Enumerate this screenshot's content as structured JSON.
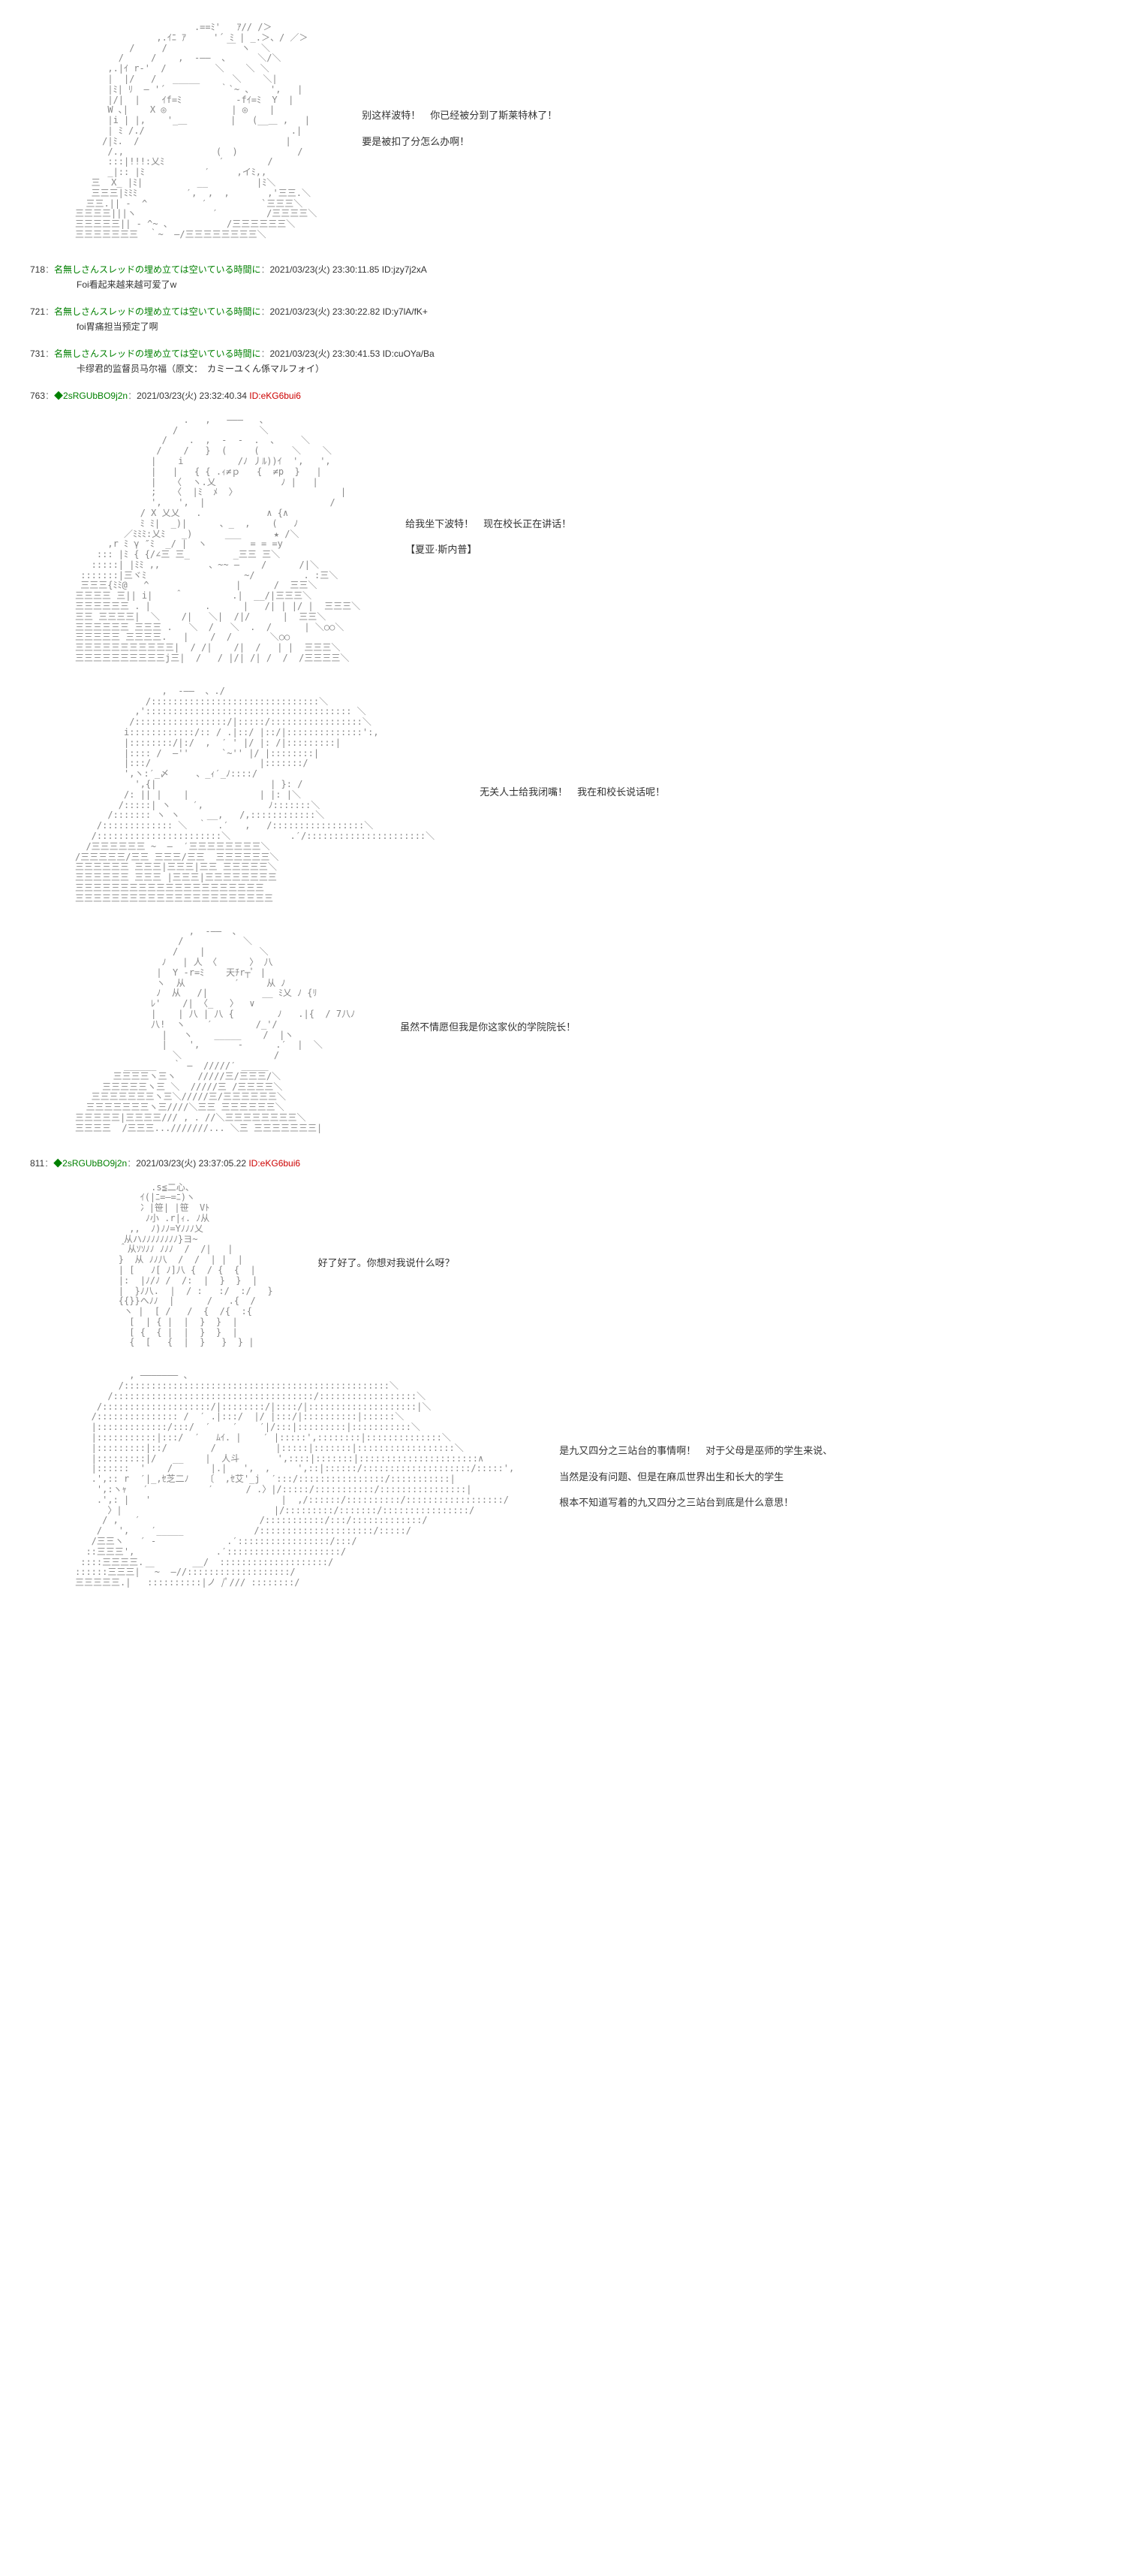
{
  "panels": [
    {
      "aa": "                      .==ﾐ'   ｱ// /＞\n               ,.ｲﾆ ｱ     '´ ﾐ | _.＞、/ ／＞\n          /     /           ￣ ヽ  ＼\n        /     /    ,  -――  、     ＼/＼\n      ,.|ｲ r‐'  /         ＼    ＼ ＼\n      |  |/   /   _____      ＼    ＼|\n      |ﾐ| ﾘ  ― '´          ｀`~ 、   ',   |\n      |/|  |    ｲf=ﾐ          ‐fｲ=ﾐ  Y  |\n      W ､|    X ◎            | ◎    |\n      |i | |,    '_＿        |   (__＿ ,   |\n      | ﾐ /./                           .|\n     /|ﾐ.  /                           |\n      /.,                 (  )           /\n      :::|!!!:乂ﾐ          ′        /\n      _|:: |ﾐ           ′     ,イﾐ,,\n   三  X_ |ﾐ|          __         |ﾐ＼\n   三三三|ﾐﾐﾐ         ′,  ,  ,       ,'三三.＼\n  三三.|| -  ^          ′          `三三三＼\n三三三三|||ヽ              ′         /三三三三＼\n三三三三三|| - ^~ 、          /三三三三三三＼\n三三三三三三三  ｀~  ―/三三三三三三三三＼",
      "lines": [
        "别这样波特！　你已经被分到了斯莱特林了！",
        "要是被扣了分怎么办啊！"
      ]
    },
    {
      "aa": "                    .   ,   ―――   、\n                  /               ＼\n                /    .  ,  -  -  .  、    ＼\n               /    /   }  (     (      ＼    ＼\n              |    i          /ﾉ 丿ﾙ))ｲ  ',   ',\n              |   |   { { .ｨ≠ｐ   {  ≠p  }   |\n              |   〈  ヽ.乂            ﾉ |   |\n              ;   〈  |ﾐ  ﾒ  〉                   |\n              ',   ',  |                       /\n            / X 乂乂   .            ∧ {∧\n            ﾐ ﾐ|  _)|      、_  ,    (   ﾉ\n         ／ﾐﾐﾐ:乂ﾐ   _)      ___      ★ /＼\n      ,r ﾐ γ ″ﾐ  _/ |  ヽ        = = =y\n    ::: |ﾐ { {/∠三 三_        _三三 三＼\n   :::::| |ﾐﾐ ,,         、~~ ―    /      /|＼\n :::::::|三ヾﾐ                  ~/         . :三＼\n 三三三{ﾐﾐ@   ^                |      /  三三＼\n三三三三 三|| i|    ＾         .|  __/|三三三＼\n三三三三三三 . |          .      |   /| | |/ |  三三三＼\n三三 三三三三|  ＼    /|   ＼|  /|/      |  三三＼\n三三三三三三 三三三 .   ＼  /   ＼  .  /      | ＼○○＼\n三三三三三 三三三三.   |    /  /       ＼○○\n三三三三三三三三三三三|  / /|    /|  /   | |  三三三＼\n三三三三三三三三三三j三|  /   / |/| /| /  /  /三三三三＼",
      "lines": [
        "给我坐下波特！　现在校长正在讲话！",
        "",
        "",
        "",
        "【夏亚·斯内普】"
      ]
    },
    {
      "aa": "                ,  -――  、./\n             /:::::::::::::::::::::::::::::::＼\n           ,':::::::::::::::::::::::::::::::::::::: ＼\n          /:::::::::::::::::/|:::::/:::::::::::::::::＼\n         i::::::::::::/:: / .|::/ |::/|::::::::::::::':,\n         |::::::::/|:/  ,  ′ ' |/ |: /|:::::::::|\n         |:::: /  ―''      `~'' |/ |::::::::|\n         |:::/                    |:::::::/\n         ',ヽ:′_〆     、_ｨ′_ﾉ::::/\n           ',{|                     | }: /\n         /: || |    |             | |: |＼\n        /:::::| ヽ    ′,            ﾉ:::::::＼\n      /::::::: ヽ ヽ     __,   /,::::::::::::＼\n    /::::::::::::: ＼  ｀  .′   ,   /:::::::::::::::::＼\n   /:::::::::::::::::::::::＼           .′/::::::::::::::::::::::＼\n  /三三三三三三 ~  ―  ′三三三三三三三三＼\n/三三三三三/三三 三三三/三三  三三三三三三＼\n三三三三三三 三三三|三三三|三三 三三三三三＼\n三三三三三三 三三三 |三三三|三三三三三三三三\n三三三三三三三三三三三三三三三三三三三三三\n三三三三三三三三三三三三三三三三三三三三三三",
      "lines": [
        "无关人士给我闭嘴！　我在和校长说话呢！"
      ]
    },
    {
      "aa": "                     ,  -――  、\n                   /           ＼\n                  /    |          ＼\n                ﾉ   | 人 〈      〉 八\n               |  Y ‐r=ﾐ    天ﾁr┬ﾟ |\n               ヽ  从         ′     从 ﾉ\n               ﾉ  从   /|          __ ﾐ乂 ﾉ {ﾘ\n              ﾚ'    /| 〈_   〉  ∨\n              |    | 八 | 八 {        ﾉ   .|{  / 7八ﾉ\n              八!  ヽ    ′        /_'/\n                |   ヽ    _____    /  |ヽ\n                |    ',       -      .′  |  ＼\n                  ＼                 /\n         ______   ｀ ―  /////′ _____\n       三三三三ヽ三ヽ    /////三/三三三/＼\n     三三三三三ヽ三 ＼  /////三 /三三三三＼\n   三三三三三三三ヽ三＼/////三/三三三三三三＼\n  三三三三三三三ヽ三////＼三三 三三三三三三＼\n三三三三三|三三三三/// , . //＼三三三三三三三三＼\n三三三三  /三三三...///////... ＼三 三三三三三三三|",
      "lines": [
        "虽然不情愿但我是你这家伙的学院院长！"
      ]
    }
  ],
  "posts": [
    {
      "no": "718",
      "name": "名無しさんスレッドの埋め立ては空いている時間に",
      "meta": "2021/03/23(火) 23:30:11.85 ID:jzy7j2xA",
      "body": "Foi看起来越来越可爱了w"
    },
    {
      "no": "721",
      "name": "名無しさんスレッドの埋め立ては空いている時間に",
      "meta": "2021/03/23(火) 23:30:22.82 ID:y7lA/fK+",
      "body": "foi胃痛担当预定了啊"
    },
    {
      "no": "731",
      "name": "名無しさんスレッドの埋め立ては空いている時間に",
      "meta": "2021/03/23(火) 23:30:41.53 ID:cuOYa/Ba",
      "body": "卡缪君的监督员马尔福（原文：　カミーユくん係マルフォイ）"
    }
  ],
  "trip_posts": [
    {
      "no": "763",
      "trip": "◆2sRGUbBO9j2n",
      "meta": "2021/03/23(火) 23:32:40.34",
      "id": "ID:eKG6bui6"
    },
    {
      "no": "811",
      "trip": "◆2sRGUbBO9j2n",
      "meta": "2021/03/23(火) 23:37:05.22",
      "id": "ID:eKG6bui6"
    }
  ],
  "panels2": [
    {
      "aa": "              .s≦二心、\n            ｲ(|ﾆ=―=ﾆ)ヽ\n            冫|笹| |笹  Vﾄ\n             ﾉ小 .r|ｨ. ﾉ从\n          ,,  ﾉ)ﾉﾉ=Yﾉﾉﾉ乂\n         从ハﾉﾉﾉﾉﾉﾉﾉﾉ}ヨ~\n        ＾从ｿｿﾉﾉ ﾉﾉﾉ  /  /|   |\n        }  从 ﾉﾉ八  /  /  | |  |\n        | [   ﾉ[ ﾉ]八 {  / {  {  |\n        |:  |ﾉ/ﾉ /  /:  |  }  }  |\n        |  }ﾉ八.  |  / :   :/  :/   }\n        {{}}へﾉﾉ  |      /   .{  /\n         ヽ |  [ /   /  {  /{  :{\n          [  | { |  |  }  }  |\n          [ {  { |  |  }  }  |\n          {  [   {  |  }   }  } |",
      "lines": [
        "好了好了。你想对我说什么呀？"
      ]
    },
    {
      "aa": "          , ――――――― 、\n        /:::::::::::::::::::::::::::::::::::::::::::::::::＼\n      /:::::::::::::::::::::::::::::::::::::/::::::::::::::::::＼\n    /::::::::::::::::::::/|::::::::/|::::/|::::::::::::::::::::|＼\n   /::::::::::::::: /  ′ .|:::/  |/ |:::/|::::::::::|::::::＼\n   |:::::::::::::/:::/  ′    ′    ′|/:::|:::::::::|:::::::::::＼\n   |:::::::::::|:::/  ′   ﾑｲ. |    ′ |:::::',::::::::|::::::::::::::＼\n   |:::::::::|::/        /           |:::::|:::::::|::::::::::::::::::＼\n   |:::::::::|/   __    |  人斗       ',::::|:::::::|::::::::::::::::::::::∧\n   |::::::  '    /       |.|   ',  ,     ',::|::::::/::::::::::::::::::::/:::::',\n   .',:: r  ′|_,ｾ芝二ﾉ   〔  ,ｾ艾'_j  ′:::/::::::::::::::::/:::::::::::|\n    ',:ヽｬ   ′           ′      / .〉|/:::::/:::::::::::/::::::::::::::::|\n    .',: |   '                        |  ,/::::::/::::::::::/::::::::::::::::::/\n      〉|                            |/:::::::::/:::::::/::::::::::::::::/\n     / ,   ′                      /:::::::::::/:::/:::::::::::::/\n    /   ',    ′_____             /:::::::::::::::::::::/:::::/\n   /三三ヽ   ′ -             .′:::::::::::::::::/:::/\n  ::三三三',               .′:::::::::::::::::::::/\n ::::三三三三.         __/  ::::::::::::::::::::/\n::::::三三三| ￣~  ―//:::::::::::::::::::/\n三三三三三.|   ::::::::::|ノ /ﾟ/// ::::::::/",
      "lines": [
        "是九又四分之三站台的事情啊！　对于父母是巫师的学生来说、",
        "当然是没有问题、但是在麻瓜世界出生和长大的学生",
        "根本不知道写着的九又四分之三站台到底是什么意思！"
      ]
    }
  ]
}
